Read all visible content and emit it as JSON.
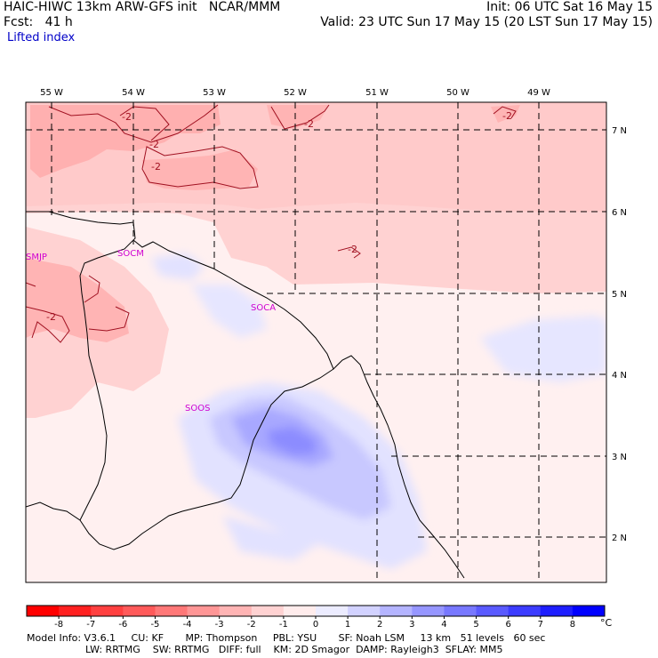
{
  "header": {
    "title": "HAIC-HIWC 13km ARW-GFS init   NCAR/MMM",
    "forecast": "Fcst:   41 h",
    "field": "Lifted index",
    "init": "Init: 06 UTC Sat 16 May 15",
    "valid": "Valid: 23 UTC Sun 17 May 15 (20 LST Sun 17 May 15)"
  },
  "map": {
    "lon_labels": [
      "55 W",
      "54 W",
      "53 W",
      "52 W",
      "51 W",
      "50 W",
      "49 W"
    ],
    "lat_labels": [
      "7 N",
      "6 N",
      "5 N",
      "4 N",
      "3 N",
      "2 N"
    ],
    "contour_labels": [
      "-2",
      "-2",
      "-2",
      "-2",
      "-2",
      "-2",
      "-2",
      "-2"
    ],
    "stations": [
      "SMJP",
      "SOCM",
      "SOCA",
      "SOOS"
    ]
  },
  "colorbar": {
    "unit": "°C",
    "ticks": [
      "-8",
      "-7",
      "-6",
      "-5",
      "-4",
      "-3",
      "-2",
      "-1",
      "0",
      "1",
      "2",
      "3",
      "4",
      "5",
      "6",
      "7",
      "8"
    ],
    "colors": [
      "#ff0000",
      "#ff2020",
      "#ff4040",
      "#ff5a5a",
      "#ff7878",
      "#ff9696",
      "#ffb4b4",
      "#ffd2d2",
      "#ffecec",
      "#ececff",
      "#d2d2ff",
      "#b4b4ff",
      "#9696ff",
      "#7878ff",
      "#5a5aff",
      "#3c3cff",
      "#1e1eff",
      "#0000ff"
    ]
  },
  "footer": {
    "line1": "Model Info: V3.6.1     CU: KF       MP: Thompson     PBL: YSU       SF: Noah LSM     13 km   51 levels   60 sec",
    "line2": "LW: RRTMG    SW: RRTMG   DIFF: full    KM: 2D Smagor  DAMP: Rayleigh3  SFLAY: MM5"
  }
}
